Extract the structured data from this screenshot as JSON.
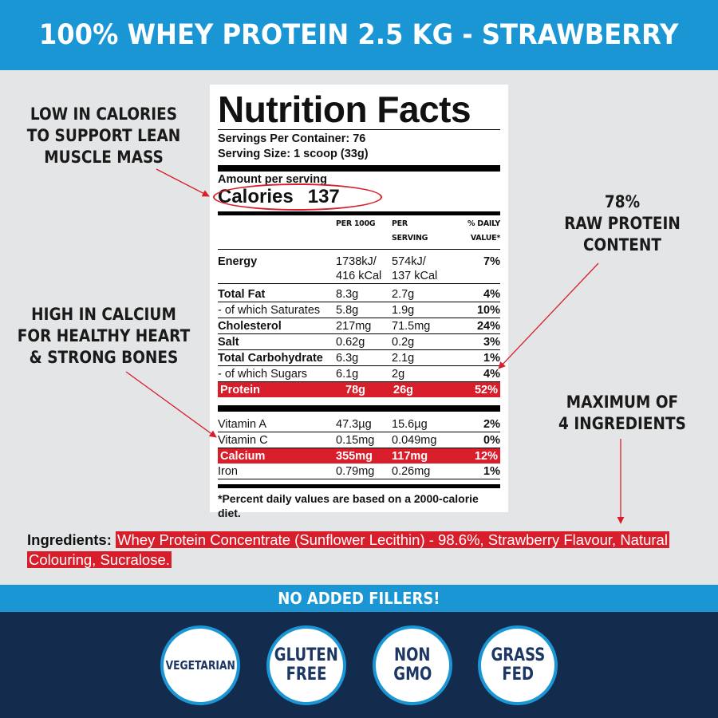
{
  "banner": {
    "title": "100% WHEY PROTEIN 2.5 KG - STRAWBERRY"
  },
  "callouts": {
    "calories": [
      "LOW IN CALORIES",
      "TO SUPPORT LEAN",
      "MUSCLE MASS"
    ],
    "calcium": [
      "HIGH IN CALCIUM",
      "FOR HEALTHY HEART",
      "& STRONG BONES"
    ],
    "protein": [
      "78%",
      "RAW PROTEIN",
      "CONTENT"
    ],
    "ingredients": [
      "MAXIMUM OF",
      "4 INGREDIENTS"
    ]
  },
  "label": {
    "title": "Nutrition Facts",
    "servings_per_container": "Servings Per Container: 76",
    "serving_size": "Serving Size: 1 scoop (33g)",
    "amount_per_serving": "Amount per serving",
    "calories_label": "Calories",
    "calories_value": "137",
    "headers": {
      "per100": "PER 100G",
      "perserving": "PER SERVING",
      "dv": "% DAILY VALUE*"
    },
    "rows": [
      {
        "name": "Energy",
        "per100": "1738kJ/",
        "per100b": "416 kCal",
        "serv": "574kJ/",
        "servb": "137 kCal",
        "dv": "7%"
      },
      {
        "name": "Total Fat",
        "per100": "8.3g",
        "serv": "2.7g",
        "dv": "4%"
      },
      {
        "name": "- of which Saturates",
        "per100": "5.8g",
        "serv": "1.9g",
        "dv": "10%"
      },
      {
        "name": "Cholesterol",
        "per100": "217mg",
        "serv": "71.5mg",
        "dv": "24%"
      },
      {
        "name": "Salt",
        "per100": "0.62g",
        "serv": "0.2g",
        "dv": "3%"
      },
      {
        "name": "Total Carbohydrate",
        "per100": "6.3g",
        "serv": "2.1g",
        "dv": "1%"
      },
      {
        "name": "- of which Sugars",
        "per100": "6.1g",
        "serv": "2g",
        "dv": "4%"
      },
      {
        "name": "Protein",
        "per100": "78g",
        "serv": "26g",
        "dv": "52%"
      }
    ],
    "vitamins": [
      {
        "name": "Vitamin A",
        "per100": "47.3µg",
        "serv": "15.6µg",
        "dv": "2%"
      },
      {
        "name": "Vitamin C",
        "per100": "0.15mg",
        "serv": "0.049mg",
        "dv": "0%"
      },
      {
        "name": "Calcium",
        "per100": "355mg",
        "serv": "117mg",
        "dv": "12%"
      },
      {
        "name": "Iron",
        "per100": "0.79mg",
        "serv": "0.26mg",
        "dv": "1%"
      }
    ],
    "footnote": "*Percent daily values are based on a 2000-calorie diet."
  },
  "ingredients": {
    "label": "Ingredients:",
    "text": "Whey Protein Concentrate (Sunflower Lecithin) - 98.6%, Strawberry Flavour, Natural Colouring, Sucralose."
  },
  "bottom_banner": "NO ADDED FILLERS!",
  "badges": [
    {
      "lines": [
        "VEGETARIAN"
      ]
    },
    {
      "lines": [
        "GLUTEN",
        "FREE"
      ]
    },
    {
      "lines": [
        "NON",
        "GMO"
      ]
    },
    {
      "lines": [
        "GRASS",
        "FED"
      ]
    }
  ],
  "colors": {
    "banner_blue": "#1a96d4",
    "footer_navy": "#132c4e",
    "highlight_red": "#d81e2a",
    "badge_text": "#1c3764"
  }
}
